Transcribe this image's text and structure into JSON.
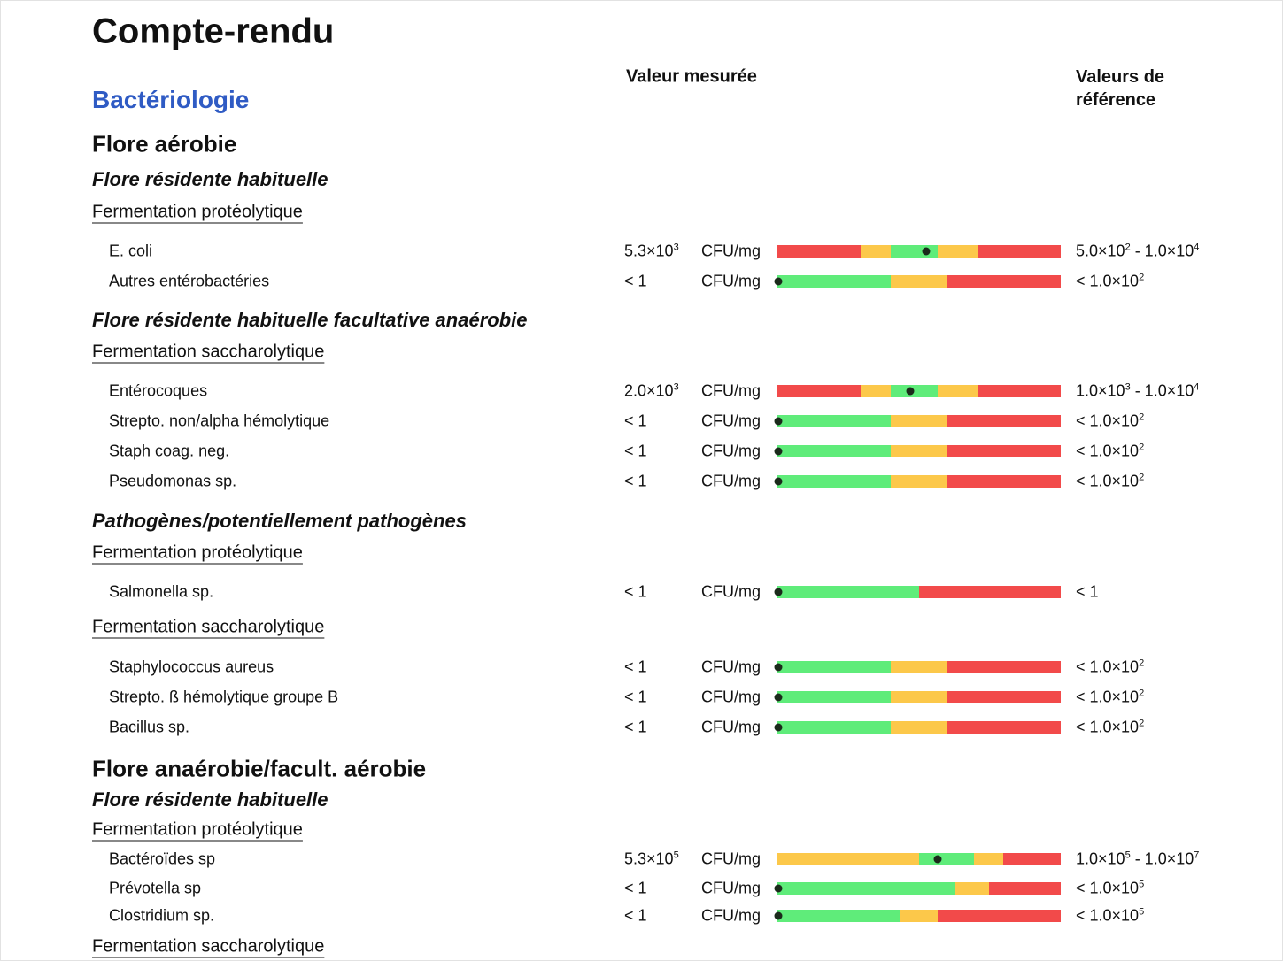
{
  "title": "Compte-rendu",
  "section": "Bactériologie",
  "headers": {
    "measured": "Valeur mesurée",
    "reference": "Valeurs de référence"
  },
  "groups": [
    {
      "title": "Flore aérobie",
      "subgroups": [
        {
          "title": "Flore résidente habituelle",
          "fermentations": [
            {
              "title": "Fermentation protéolytique",
              "rows": [
                {
                  "name": "E. coli",
                  "value": [
                    "5.3×10",
                    "3"
                  ],
                  "unit": "CFU/mg",
                  "reference": [
                    "5.0×10",
                    "2",
                    " - 1.0×10",
                    "4"
                  ]
                },
                {
                  "name": "Autres entérobactéries",
                  "value": [
                    "< 1"
                  ],
                  "unit": "CFU/mg",
                  "reference": [
                    "< 1.0×10",
                    "2"
                  ]
                }
              ]
            }
          ]
        },
        {
          "title": "Flore résidente habituelle facultative anaérobie",
          "fermentations": [
            {
              "title": "Fermentation saccharolytique",
              "rows": [
                {
                  "name": "Entérocoques",
                  "value": [
                    "2.0×10",
                    "3"
                  ],
                  "unit": "CFU/mg",
                  "reference": [
                    "1.0×10",
                    "3",
                    " - 1.0×10",
                    "4"
                  ]
                },
                {
                  "name": "Strepto. non/alpha hémolytique",
                  "value": [
                    "< 1"
                  ],
                  "unit": "CFU/mg",
                  "reference": [
                    "< 1.0×10",
                    "2"
                  ]
                },
                {
                  "name": "Staph coag. neg.",
                  "value": [
                    "< 1"
                  ],
                  "unit": "CFU/mg",
                  "reference": [
                    "< 1.0×10",
                    "2"
                  ]
                },
                {
                  "name": "Pseudomonas sp.",
                  "value": [
                    "< 1"
                  ],
                  "unit": "CFU/mg",
                  "reference": [
                    "< 1.0×10",
                    "2"
                  ]
                }
              ]
            }
          ]
        },
        {
          "title": "Pathogènes/potentiellement pathogènes",
          "fermentations": [
            {
              "title": "Fermentation protéolytique",
              "rows": [
                {
                  "name": "Salmonella sp.",
                  "value": [
                    "< 1"
                  ],
                  "unit": "CFU/mg",
                  "reference": [
                    "< 1"
                  ]
                }
              ]
            },
            {
              "title": "Fermentation saccharolytique",
              "rows": [
                {
                  "name": "Staphylococcus aureus",
                  "value": [
                    "< 1"
                  ],
                  "unit": "CFU/mg",
                  "reference": [
                    "< 1.0×10",
                    "2"
                  ]
                },
                {
                  "name": "Strepto. ß hémolytique groupe B",
                  "value": [
                    "< 1"
                  ],
                  "unit": "CFU/mg",
                  "reference": [
                    "< 1.0×10",
                    "2"
                  ]
                },
                {
                  "name": "Bacillus sp.",
                  "value": [
                    "< 1"
                  ],
                  "unit": "CFU/mg",
                  "reference": [
                    "< 1.0×10",
                    "2"
                  ]
                }
              ]
            }
          ]
        }
      ]
    },
    {
      "title": "Flore anaérobie/facult. aérobie",
      "subgroups": [
        {
          "title": "Flore résidente habituelle",
          "fermentations": [
            {
              "title": "Fermentation protéolytique",
              "rows": [
                {
                  "name": "Bactéroïdes sp",
                  "value": [
                    "5.3×10",
                    "5"
                  ],
                  "unit": "CFU/mg",
                  "reference": [
                    "1.0×10",
                    "5",
                    " - 1.0×10",
                    "7"
                  ]
                },
                {
                  "name": "Prévotella sp",
                  "value": [
                    "< 1"
                  ],
                  "unit": "CFU/mg",
                  "reference": [
                    "< 1.0×10",
                    "5"
                  ]
                },
                {
                  "name": "Clostridium sp.",
                  "value": [
                    "< 1"
                  ],
                  "unit": "CFU/mg",
                  "reference": [
                    "< 1.0×10",
                    "5"
                  ]
                }
              ]
            },
            {
              "title": "Fermentation saccharolytique",
              "rows": []
            }
          ]
        }
      ]
    }
  ]
}
